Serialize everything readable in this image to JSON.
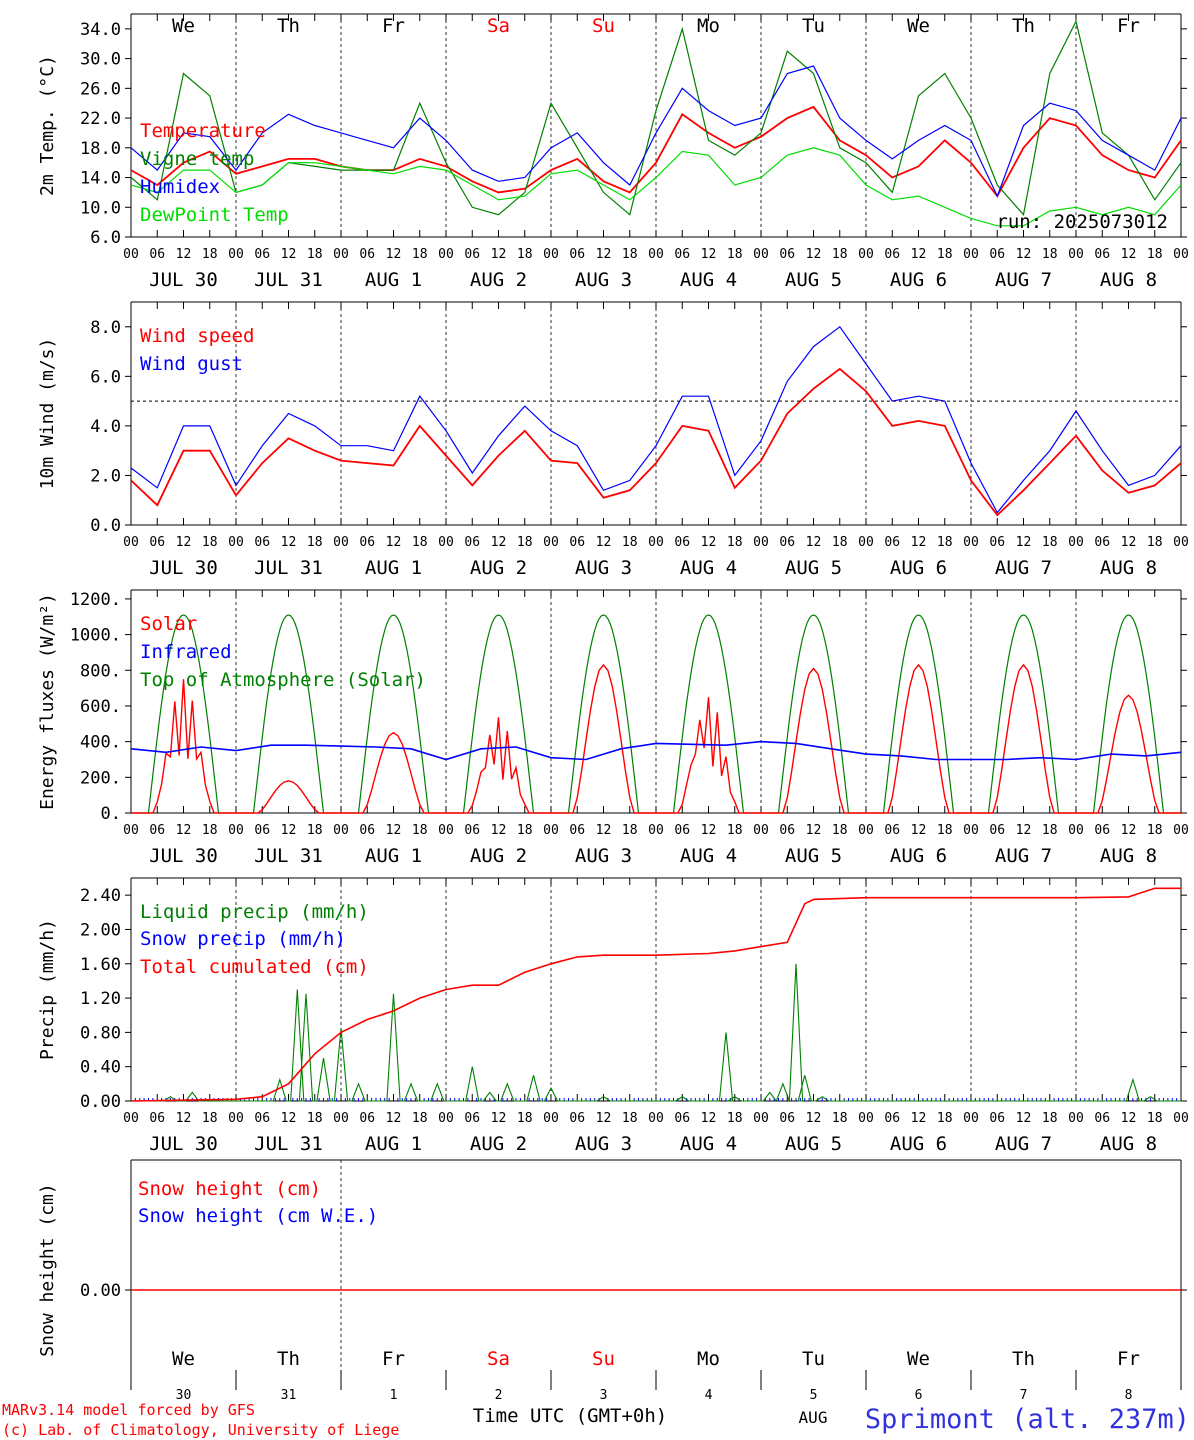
{
  "footer": {
    "model": "MARv3.14 model forced by GFS",
    "lab": "(c) Lab. of Climatology, University of Liege",
    "xlabel": "Time UTC (GMT+0h)",
    "month": "AUG",
    "station": "Sprimont (alt. 237m)"
  },
  "run_label": "run: 2025073012",
  "weekdays": [
    {
      "label": "We",
      "color": "#000000"
    },
    {
      "label": "Th",
      "color": "#000000"
    },
    {
      "label": "Fr",
      "color": "#000000"
    },
    {
      "label": "Sa",
      "color": "#ff0000"
    },
    {
      "label": "Su",
      "color": "#ff0000"
    },
    {
      "label": "Mo",
      "color": "#000000"
    },
    {
      "label": "Tu",
      "color": "#000000"
    },
    {
      "label": "We",
      "color": "#000000"
    },
    {
      "label": "Th",
      "color": "#000000"
    },
    {
      "label": "Fr",
      "color": "#000000"
    }
  ],
  "day_numbers": [
    "30",
    "31",
    "1",
    "2",
    "3",
    "4",
    "5",
    "6",
    "7",
    "8"
  ],
  "date_labels": [
    "JUL 30",
    "JUL 31",
    "AUG  1",
    "AUG  2",
    "AUG  3",
    "AUG  4",
    "AUG  5",
    "AUG  6",
    "AUG  7",
    "AUG  8"
  ],
  "hour_ticks": [
    "00",
    "06",
    "12",
    "18"
  ],
  "colors": {
    "red": "#ff0000",
    "green": "#008000",
    "blue": "#0000ff",
    "lightgreen": "#00dd00"
  },
  "chart_data": [
    {
      "type": "line",
      "ylabel": "2m Temp. (°C)",
      "ylim": [
        6,
        36
      ],
      "ytick_labels": [
        "6.0",
        "10.0",
        "14.0",
        "18.0",
        "22.0",
        "26.0",
        "30.0",
        "34.0"
      ],
      "ytick_values": [
        6,
        10,
        14,
        18,
        22,
        26,
        30,
        34
      ],
      "x": [
        0,
        6,
        12,
        18,
        24,
        30,
        36,
        42,
        48,
        54,
        60,
        66,
        72,
        78,
        84,
        90,
        96,
        102,
        108,
        114,
        120,
        126,
        132,
        138,
        144,
        150,
        156,
        162,
        168,
        174,
        180,
        186,
        192,
        198,
        204,
        210,
        216,
        222,
        228,
        234,
        240
      ],
      "series": [
        {
          "name": "Temperature",
          "color": "#ff0000",
          "values": [
            15,
            13,
            16,
            17.5,
            14.5,
            15.5,
            16.5,
            16.5,
            15.5,
            15,
            15,
            16.5,
            15.5,
            13.5,
            12,
            12.5,
            15,
            16.5,
            13.5,
            12,
            16,
            22.5,
            20,
            18,
            19.5,
            22,
            23.5,
            19,
            17,
            14,
            15.5,
            19,
            16,
            11.5,
            18,
            22,
            21,
            17,
            15,
            14,
            19
          ]
        },
        {
          "name": "Vigne temp",
          "color": "#008000",
          "values": [
            14,
            11,
            28,
            25,
            12,
            13,
            16,
            15.5,
            15,
            15,
            15,
            24,
            16,
            10,
            9,
            12,
            24,
            18,
            12,
            9,
            23,
            34,
            19,
            17,
            20,
            31,
            28,
            18,
            16,
            12,
            25,
            28,
            22,
            13,
            9,
            28,
            35,
            20,
            17,
            11,
            16
          ]
        },
        {
          "name": "Humidex",
          "color": "#0000ff",
          "values": [
            18,
            15,
            20,
            19.5,
            15,
            20,
            22.5,
            21,
            20,
            19,
            18,
            22,
            19,
            15,
            13.5,
            14,
            18,
            20,
            16,
            13,
            20,
            26,
            23,
            21,
            22,
            28,
            29,
            22,
            19,
            16.5,
            19,
            21,
            19,
            11.5,
            21,
            24,
            23,
            19,
            17,
            15,
            22
          ]
        },
        {
          "name": "DewPoint Temp",
          "color": "#00dd00",
          "values": [
            13,
            12,
            15,
            15,
            12,
            13,
            16,
            16,
            15.5,
            15,
            14.5,
            15.5,
            15,
            13,
            11,
            11.5,
            14.5,
            15,
            13,
            11,
            14,
            17.5,
            17,
            13,
            14,
            17,
            18,
            17,
            13,
            11,
            11.5,
            10,
            8.5,
            7.5,
            7.5,
            9.5,
            10,
            9,
            10,
            9,
            13
          ]
        }
      ]
    },
    {
      "type": "line",
      "ylabel": "10m Wind (m/s)",
      "ylim": [
        0,
        9
      ],
      "ytick_labels": [
        "0.0",
        "2.0",
        "4.0",
        "6.0",
        "8.0"
      ],
      "ytick_values": [
        0,
        2,
        4,
        6,
        8
      ],
      "reference_line": 5,
      "x": [
        0,
        6,
        12,
        18,
        24,
        30,
        36,
        42,
        48,
        54,
        60,
        66,
        72,
        78,
        84,
        90,
        96,
        102,
        108,
        114,
        120,
        126,
        132,
        138,
        144,
        150,
        156,
        162,
        168,
        174,
        180,
        186,
        192,
        198,
        204,
        210,
        216,
        222,
        228,
        234,
        240
      ],
      "series": [
        {
          "name": "Wind speed",
          "color": "#ff0000",
          "values": [
            1.8,
            0.8,
            3.0,
            3.0,
            1.2,
            2.5,
            3.5,
            3.0,
            2.6,
            2.5,
            2.4,
            4.0,
            2.8,
            1.6,
            2.8,
            3.8,
            2.6,
            2.5,
            1.1,
            1.4,
            2.5,
            4.0,
            3.8,
            1.5,
            2.6,
            4.5,
            5.5,
            6.3,
            5.4,
            4.0,
            4.2,
            4.0,
            1.8,
            0.4,
            1.4,
            2.5,
            3.6,
            2.2,
            1.3,
            1.6,
            2.5
          ]
        },
        {
          "name": "Wind gust",
          "color": "#0000ff",
          "values": [
            2.3,
            1.5,
            4.0,
            4.0,
            1.6,
            3.2,
            4.5,
            4.0,
            3.2,
            3.2,
            3.0,
            5.2,
            3.8,
            2.1,
            3.6,
            4.8,
            3.8,
            3.2,
            1.4,
            1.8,
            3.2,
            5.2,
            5.2,
            2.0,
            3.4,
            5.8,
            7.2,
            8.0,
            6.5,
            5.0,
            5.2,
            5.0,
            2.5,
            0.5,
            1.8,
            3.0,
            4.6,
            3.0,
            1.6,
            2.0,
            3.2
          ]
        }
      ]
    },
    {
      "type": "line",
      "ylabel": "Energy fluxes (W/m²)",
      "ylim": [
        0,
        1250
      ],
      "ytick_labels": [
        "0.",
        "200.",
        "400.",
        "600.",
        "800.",
        "1000.",
        "1200."
      ],
      "ytick_values": [
        0,
        200,
        400,
        600,
        800,
        1000,
        1200
      ],
      "series": [
        {
          "name": "Solar",
          "color": "#ff0000",
          "daily_peak": [
            750,
            180,
            450,
            540,
            830,
            660,
            810,
            830,
            830,
            660
          ]
        },
        {
          "name": "Infrared",
          "color": "#0000ff",
          "values": [
            360,
            340,
            370,
            350,
            380,
            380,
            375,
            370,
            360,
            300,
            360,
            370,
            310,
            300,
            360,
            390,
            385,
            380,
            400,
            390,
            360,
            330,
            320,
            300,
            300,
            300,
            310,
            300,
            330,
            320,
            340
          ]
        },
        {
          "name": "Top of Atmosphere (Solar)",
          "color": "#008000",
          "daily_peak": 1110
        }
      ]
    },
    {
      "type": "line",
      "ylabel": "Precip (mm/h)",
      "ylim": [
        0,
        2.6
      ],
      "ytick_labels": [
        "0.00",
        "0.40",
        "0.80",
        "1.20",
        "1.60",
        "2.00",
        "2.40"
      ],
      "ytick_values": [
        0,
        0.4,
        0.8,
        1.2,
        1.6,
        2.0,
        2.4
      ],
      "series": [
        {
          "name": "Liquid precip (mm/h)",
          "color": "#008000",
          "spikes": [
            [
              9,
              0.05
            ],
            [
              14,
              0.1
            ],
            [
              34,
              0.25
            ],
            [
              38,
              1.3
            ],
            [
              40,
              1.25
            ],
            [
              44,
              0.5
            ],
            [
              48,
              0.85
            ],
            [
              52,
              0.2
            ],
            [
              60,
              1.25
            ],
            [
              64,
              0.2
            ],
            [
              70,
              0.2
            ],
            [
              78,
              0.4
            ],
            [
              82,
              0.1
            ],
            [
              86,
              0.2
            ],
            [
              92,
              0.3
            ],
            [
              96,
              0.15
            ],
            [
              108,
              0.05
            ],
            [
              126,
              0.05
            ],
            [
              136,
              0.8
            ],
            [
              138,
              0.05
            ],
            [
              146,
              0.1
            ],
            [
              149,
              0.2
            ],
            [
              152,
              1.6
            ],
            [
              154,
              0.3
            ],
            [
              158,
              0.05
            ],
            [
              229,
              0.25
            ],
            [
              233,
              0.05
            ]
          ]
        },
        {
          "name": "Snow precip (mm/h)",
          "color": "#0000ff",
          "values": [
            0
          ]
        },
        {
          "name": "Total cumulated (cm)",
          "color": "#ff0000",
          "x": [
            0,
            24,
            30,
            36,
            42,
            48,
            54,
            60,
            66,
            72,
            78,
            84,
            90,
            96,
            102,
            108,
            120,
            132,
            138,
            144,
            150,
            154,
            156,
            168,
            192,
            216,
            228,
            234,
            240
          ],
          "values": [
            0,
            0.02,
            0.05,
            0.2,
            0.55,
            0.8,
            0.95,
            1.05,
            1.2,
            1.3,
            1.35,
            1.35,
            1.5,
            1.6,
            1.68,
            1.7,
            1.7,
            1.72,
            1.75,
            1.8,
            1.85,
            2.3,
            2.35,
            2.37,
            2.37,
            2.37,
            2.38,
            2.48,
            2.48
          ]
        }
      ]
    },
    {
      "type": "line",
      "ylabel": "Snow height (cm)",
      "ytick_labels": [
        "0.00"
      ],
      "ytick_values": [
        0
      ],
      "series": [
        {
          "name": "Snow height (cm)",
          "color": "#ff0000",
          "values": [
            0
          ]
        },
        {
          "name": "Snow height (cm W.E.)",
          "color": "#0000ff",
          "values": [
            0
          ]
        }
      ]
    }
  ]
}
